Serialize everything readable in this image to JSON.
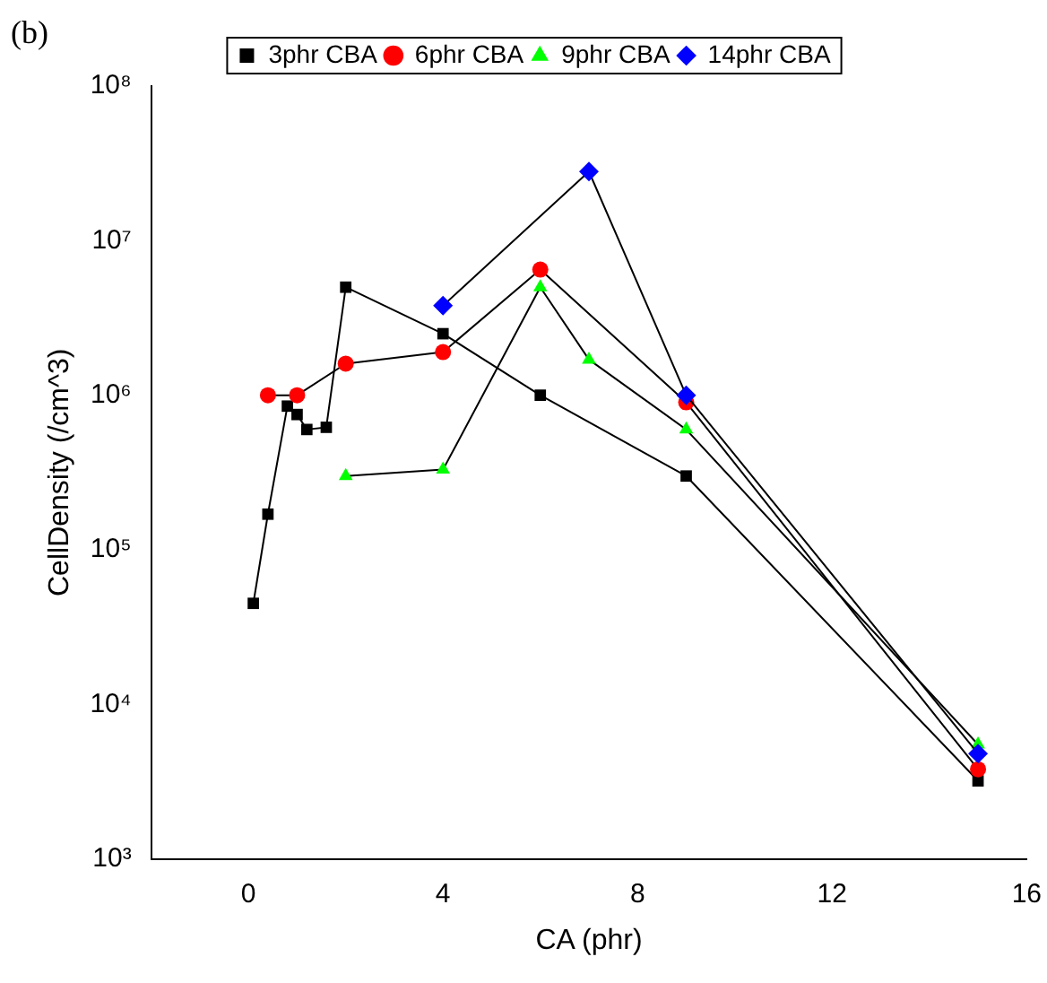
{
  "chart_data": {
    "type": "line",
    "xlabel": "CA (phr)",
    "ylabel": "CellDensity (/cm^3)",
    "annotations": [
      "(b)"
    ],
    "xlim": [
      -2,
      16
    ],
    "xticks": [
      0,
      4,
      8,
      12,
      16
    ],
    "ylim": [
      1000,
      100000000
    ],
    "yticks": [
      {
        "value": 1000,
        "label": "10³"
      },
      {
        "value": 10000,
        "label": "10⁴"
      },
      {
        "value": 100000,
        "label": "10⁵"
      },
      {
        "value": 1000000,
        "label": "10⁶"
      },
      {
        "value": 10000000,
        "label": "10⁷"
      },
      {
        "value": 100000000,
        "label": "10⁸"
      }
    ],
    "log": "y",
    "grid": false,
    "legend": "top left",
    "line_style": "solid",
    "series": [
      {
        "name": "3phr CBA",
        "color": "#000000",
        "marker": "square",
        "x": [
          0.1,
          0.4,
          0.8,
          1.0,
          1.2,
          1.6,
          2,
          4,
          6,
          9,
          15
        ],
        "values": [
          45000,
          170000,
          850000,
          750000,
          600000,
          620000,
          5000000,
          2500000,
          1000000,
          300000,
          3200
        ]
      },
      {
        "name": "6phr CBA",
        "color": "#ff0000",
        "marker": "circle",
        "x": [
          0.4,
          1,
          2,
          4,
          6,
          9,
          15
        ],
        "values": [
          1000000,
          1000000,
          1600000,
          1900000,
          6500000,
          900000,
          3800
        ]
      },
      {
        "name": "9phr CBA",
        "color": "#00ff00",
        "marker": "triangle",
        "x": [
          2,
          4,
          6,
          7,
          9,
          15
        ],
        "values": [
          300000,
          330000,
          5000000,
          1700000,
          600000,
          5500
        ]
      },
      {
        "name": "14phr CBA",
        "color": "#0000ff",
        "marker": "diamond",
        "x": [
          4,
          7,
          9,
          15
        ],
        "values": [
          3800000,
          28000000,
          1000000,
          4800
        ]
      }
    ]
  }
}
